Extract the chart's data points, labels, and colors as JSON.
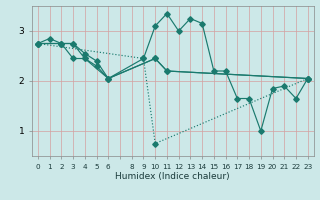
{
  "xlabel": "Humidex (Indice chaleur)",
  "bg_color": "#cce8e8",
  "plot_bg_color": "#cce8e8",
  "line_color": "#1a7a6e",
  "grid_color": "#d4a0a0",
  "xlim": [
    -0.5,
    23.5
  ],
  "ylim": [
    0.5,
    3.5
  ],
  "yticks": [
    1,
    2,
    3
  ],
  "xtick_labels": [
    "0",
    "1",
    "2",
    "3",
    "4",
    "5",
    "6",
    "",
    "8",
    "9",
    "10",
    "11",
    "12",
    "13",
    "14",
    "15",
    "16",
    "17",
    "18",
    "19",
    "20",
    "21",
    "22",
    "23"
  ],
  "series": [
    {
      "x": [
        0,
        1,
        2,
        3,
        4,
        5,
        6,
        9,
        10,
        11,
        12,
        13,
        14,
        15,
        16,
        17,
        18,
        19,
        20,
        21,
        22,
        23
      ],
      "y": [
        2.75,
        2.85,
        2.75,
        2.75,
        2.55,
        2.4,
        2.05,
        2.45,
        3.1,
        3.35,
        3.0,
        3.25,
        3.15,
        2.2,
        2.2,
        1.65,
        1.65,
        1.0,
        1.85,
        1.9,
        1.65,
        2.05
      ],
      "linestyle": "-",
      "marker": "D"
    },
    {
      "x": [
        0,
        2,
        3,
        4,
        5,
        6,
        10,
        11,
        23
      ],
      "y": [
        2.75,
        2.75,
        2.75,
        2.45,
        2.3,
        2.05,
        2.45,
        2.2,
        2.05
      ],
      "linestyle": "-",
      "marker": "D"
    },
    {
      "x": [
        0,
        2,
        3,
        4,
        6,
        10,
        11,
        23
      ],
      "y": [
        2.75,
        2.75,
        2.45,
        2.45,
        2.05,
        2.45,
        2.2,
        2.05
      ],
      "linestyle": "-",
      "marker": "D"
    },
    {
      "x": [
        0,
        9,
        10,
        23
      ],
      "y": [
        2.75,
        2.45,
        0.75,
        2.05
      ],
      "linestyle": ":",
      "marker": "D"
    }
  ]
}
